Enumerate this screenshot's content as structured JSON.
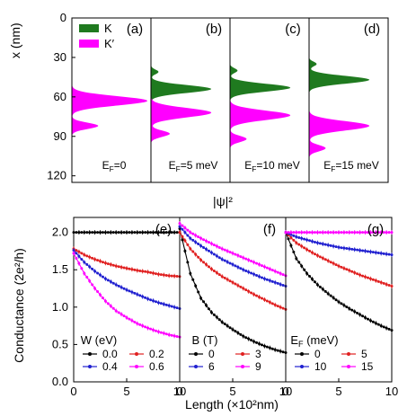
{
  "figure": {
    "top_ylabel": "x (nm)",
    "top_xlabel": "|ψ|²",
    "bottom_ylabel": "Conductance (2e²/h)",
    "bottom_xlabel": "Length (×10²nm)"
  },
  "colors": {
    "K": "#1f7a1f",
    "Kprime": "#ff00ff"
  },
  "chart_data": [
    {
      "panel": "a",
      "type": "area",
      "annotation": "E_F=0",
      "legend": [
        "K",
        "K′"
      ],
      "ylabel": "x (nm)",
      "ylim": [
        125,
        0
      ],
      "yticks": [
        0,
        30,
        60,
        90,
        120
      ],
      "series": [
        {
          "name": "K",
          "peaks": [
            {
              "x": 63,
              "amp": 1.0,
              "w": 5
            }
          ]
        },
        {
          "name": "K′",
          "peaks": [
            {
              "x": 63,
              "amp": 1.0,
              "w": 6
            },
            {
              "x": 82,
              "amp": 0.35,
              "w": 4
            }
          ]
        }
      ]
    },
    {
      "panel": "b",
      "type": "area",
      "annotation": "E_F=5 meV",
      "series": [
        {
          "name": "K",
          "peaks": [
            {
              "x": 41,
              "amp": 0.1,
              "w": 3
            },
            {
              "x": 54,
              "amp": 0.8,
              "w": 5
            }
          ]
        },
        {
          "name": "K′",
          "peaks": [
            {
              "x": 72,
              "amp": 0.8,
              "w": 6
            },
            {
              "x": 88,
              "amp": 0.25,
              "w": 4
            }
          ]
        }
      ]
    },
    {
      "panel": "c",
      "type": "area",
      "annotation": "E_F=10 meV",
      "series": [
        {
          "name": "K",
          "peaks": [
            {
              "x": 40,
              "amp": 0.1,
              "w": 3
            },
            {
              "x": 53,
              "amp": 0.8,
              "w": 5
            }
          ]
        },
        {
          "name": "K′",
          "peaks": [
            {
              "x": 74,
              "amp": 0.8,
              "w": 6
            },
            {
              "x": 92,
              "amp": 0.22,
              "w": 4
            }
          ]
        }
      ]
    },
    {
      "panel": "d",
      "type": "area",
      "annotation": "E_F=15 meV",
      "series": [
        {
          "name": "K",
          "peaks": [
            {
              "x": 35,
              "amp": 0.1,
              "w": 3
            },
            {
              "x": 47,
              "amp": 0.8,
              "w": 5
            }
          ]
        },
        {
          "name": "K′",
          "peaks": [
            {
              "x": 82,
              "amp": 0.8,
              "w": 6
            },
            {
              "x": 99,
              "amp": 0.22,
              "w": 4
            }
          ]
        }
      ]
    },
    {
      "panel": "e",
      "type": "line",
      "legend_title": "W (eV)",
      "xlim": [
        0,
        10
      ],
      "ylim": [
        0,
        2.2
      ],
      "xticks": [
        0,
        5,
        10
      ],
      "yticks": [
        0.0,
        0.5,
        1.0,
        1.5,
        2.0
      ],
      "x": [
        0,
        1,
        2,
        3,
        4,
        5,
        6,
        7,
        8,
        9,
        10
      ],
      "series": [
        {
          "name": "0.0",
          "color": "#000000",
          "values": [
            2.0,
            2.0,
            2.0,
            2.0,
            2.0,
            2.0,
            2.0,
            2.0,
            2.0,
            2.0,
            2.0
          ]
        },
        {
          "name": "0.2",
          "color": "#e02020",
          "values": [
            1.78,
            1.7,
            1.64,
            1.59,
            1.55,
            1.52,
            1.49,
            1.47,
            1.44,
            1.42,
            1.41
          ]
        },
        {
          "name": "0.4",
          "color": "#2020d0",
          "values": [
            1.76,
            1.6,
            1.48,
            1.38,
            1.3,
            1.23,
            1.17,
            1.11,
            1.06,
            1.02,
            0.98
          ]
        },
        {
          "name": "0.6",
          "color": "#ff00ff",
          "values": [
            1.72,
            1.45,
            1.25,
            1.08,
            0.95,
            0.86,
            0.78,
            0.72,
            0.67,
            0.63,
            0.6
          ]
        }
      ]
    },
    {
      "panel": "f",
      "type": "line",
      "legend_title": "B (T)",
      "xlim": [
        0,
        10
      ],
      "ylim": [
        0,
        2.2
      ],
      "xticks": [
        0,
        5,
        10
      ],
      "x": [
        0,
        1,
        2,
        3,
        4,
        5,
        6,
        7,
        8,
        9,
        10
      ],
      "series": [
        {
          "name": "0",
          "color": "#000000",
          "values": [
            2.05,
            1.45,
            1.12,
            0.93,
            0.8,
            0.7,
            0.61,
            0.54,
            0.48,
            0.43,
            0.39
          ]
        },
        {
          "name": "3",
          "color": "#e02020",
          "values": [
            2.0,
            1.78,
            1.63,
            1.51,
            1.41,
            1.33,
            1.25,
            1.17,
            1.1,
            1.03,
            0.97
          ]
        },
        {
          "name": "6",
          "color": "#2020d0",
          "values": [
            2.08,
            1.92,
            1.82,
            1.73,
            1.64,
            1.57,
            1.5,
            1.44,
            1.38,
            1.33,
            1.28
          ]
        },
        {
          "name": "9",
          "color": "#ff00ff",
          "values": [
            2.12,
            2.0,
            1.92,
            1.85,
            1.78,
            1.72,
            1.66,
            1.6,
            1.54,
            1.48,
            1.42
          ]
        }
      ]
    },
    {
      "panel": "g",
      "type": "line",
      "legend_title": "E_F (meV)",
      "xlim": [
        0,
        10
      ],
      "ylim": [
        0,
        2.2
      ],
      "xticks": [
        0,
        5,
        10
      ],
      "x": [
        0,
        1,
        2,
        3,
        4,
        5,
        6,
        7,
        8,
        9,
        10
      ],
      "series": [
        {
          "name": "0",
          "color": "#000000",
          "values": [
            2.0,
            1.65,
            1.45,
            1.3,
            1.18,
            1.07,
            0.98,
            0.9,
            0.82,
            0.75,
            0.69
          ]
        },
        {
          "name": "5",
          "color": "#e02020",
          "values": [
            2.0,
            1.86,
            1.77,
            1.69,
            1.62,
            1.55,
            1.49,
            1.43,
            1.38,
            1.33,
            1.28
          ]
        },
        {
          "name": "10",
          "color": "#2020d0",
          "values": [
            2.0,
            1.94,
            1.9,
            1.86,
            1.83,
            1.8,
            1.78,
            1.76,
            1.74,
            1.72,
            1.7
          ]
        },
        {
          "name": "15",
          "color": "#ff00ff",
          "values": [
            2.0,
            2.0,
            2.0,
            2.0,
            2.0,
            2.0,
            2.0,
            2.0,
            2.0,
            2.0,
            2.0
          ]
        }
      ]
    }
  ]
}
